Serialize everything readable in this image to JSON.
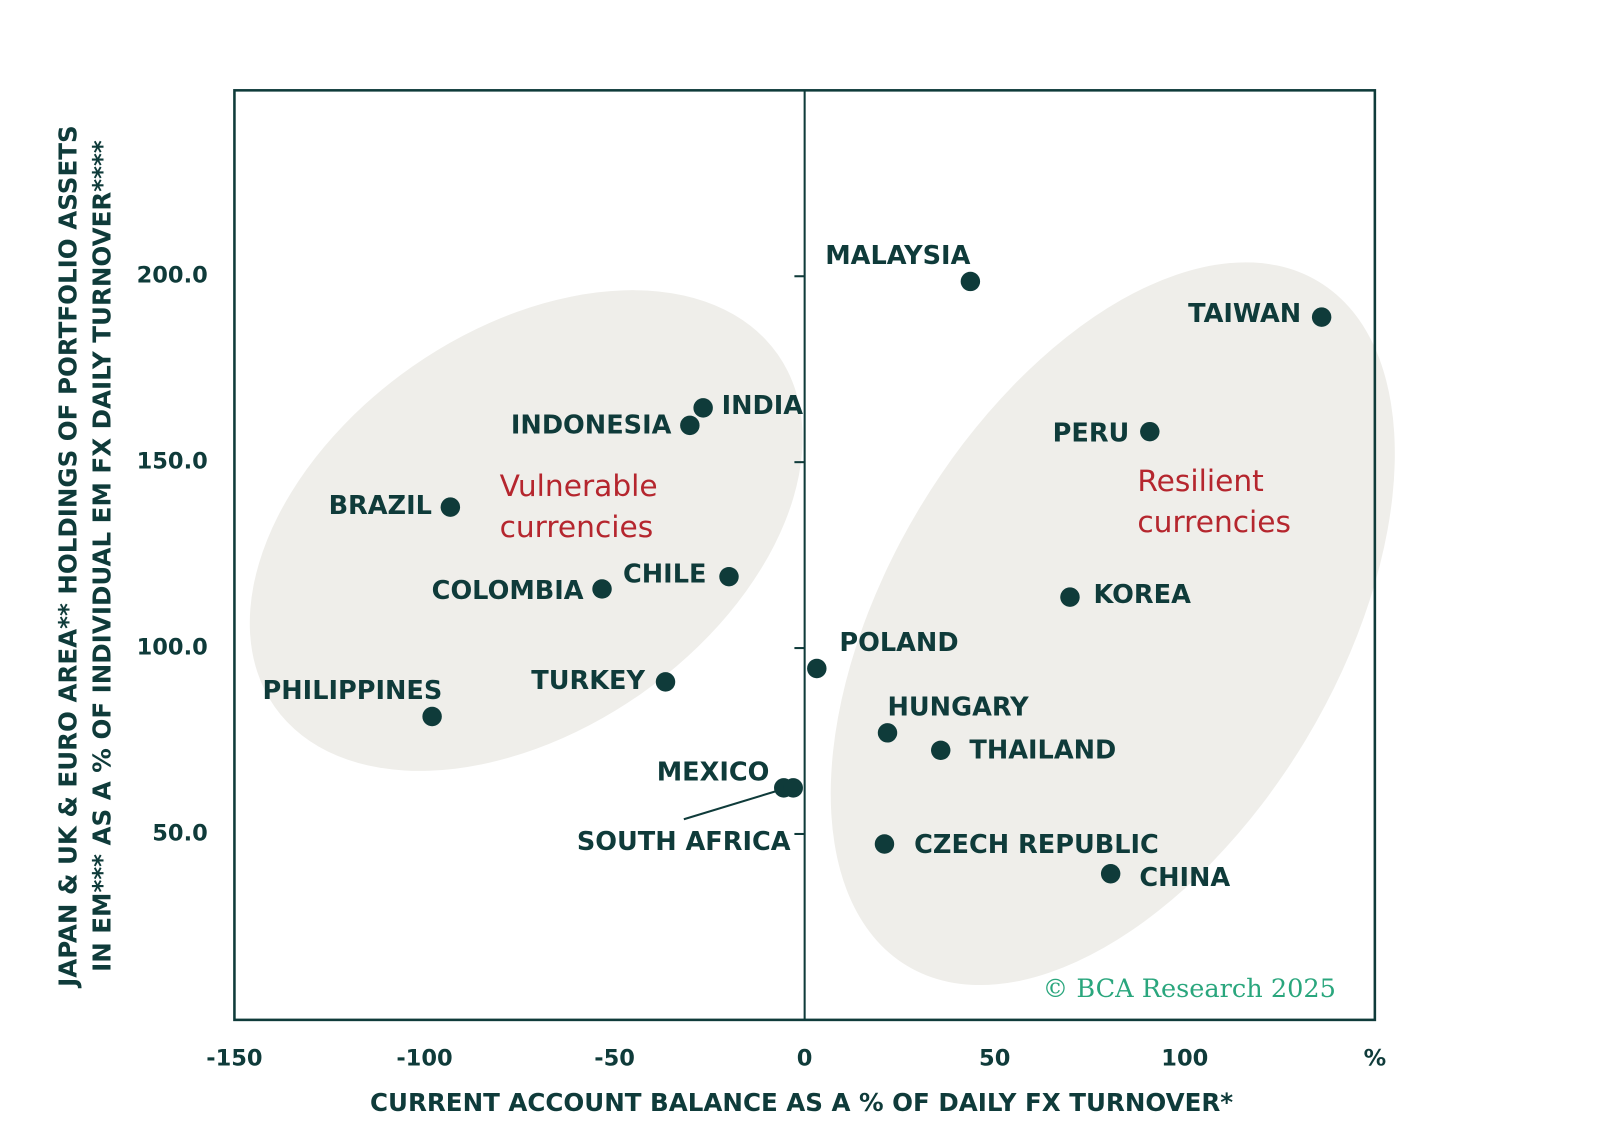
{
  "chart_data": {
    "type": "scatter",
    "ylabel": [
      "JAPAN & UK & EURO AREA** HOLDINGS OF PORTFOLIO ASSETS",
      "IN EM*** AS A % OF INDIVIDUAL EM FX DAILY TURNOVER****"
    ],
    "xlabel": "CURRENT ACCOUNT BALANCE AS A % OF DAILY FX TURNOVER*",
    "labels": [
      "MALAYSIA",
      "TAIWAN",
      "INDIA",
      "INDONESIA",
      "PERU",
      "BRAZIL",
      "CHILE",
      "COLOMBIA",
      "KOREA",
      "POLAND",
      "TURKEY",
      "PHILIPPINES",
      "HUNGARY",
      "THAILAND",
      "MEXICO",
      "SOUTH AFRICA",
      "CZECH REPUBLIC",
      "CHINA"
    ],
    "x": [
      43.6,
      136,
      -26.7,
      -30.2,
      90.8,
      -93.2,
      -19.9,
      -53.3,
      69.8,
      3.2,
      -36.6,
      -98,
      21.8,
      35.8,
      -5.5,
      -3,
      21,
      80.5
    ],
    "values": [
      198.6,
      189,
      164.6,
      159.9,
      158.2,
      137.9,
      119.2,
      115.9,
      113.7,
      94.5,
      90.9,
      81.6,
      77.2,
      72.5,
      62.4,
      62.4,
      47.3,
      39.3
    ],
    "color": "#0f3b3a",
    "xlim": [
      -150,
      150
    ],
    "ylim": [
      0,
      250
    ],
    "xticks": [
      -150,
      -100,
      -50,
      0,
      50,
      100,
      {
        "value": 150,
        "label": "%"
      }
    ],
    "yticks": [
      {
        "value": 50,
        "label": "50.0"
      },
      {
        "value": 100,
        "label": "100.0"
      },
      {
        "value": 150,
        "label": "150.0"
      },
      {
        "value": 200,
        "label": "200.0"
      }
    ],
    "annotations": [
      [
        "Vulnerable",
        "currencies"
      ],
      [
        "Resilient",
        "currencies"
      ]
    ],
    "credit": "© BCA Research 2025"
  }
}
